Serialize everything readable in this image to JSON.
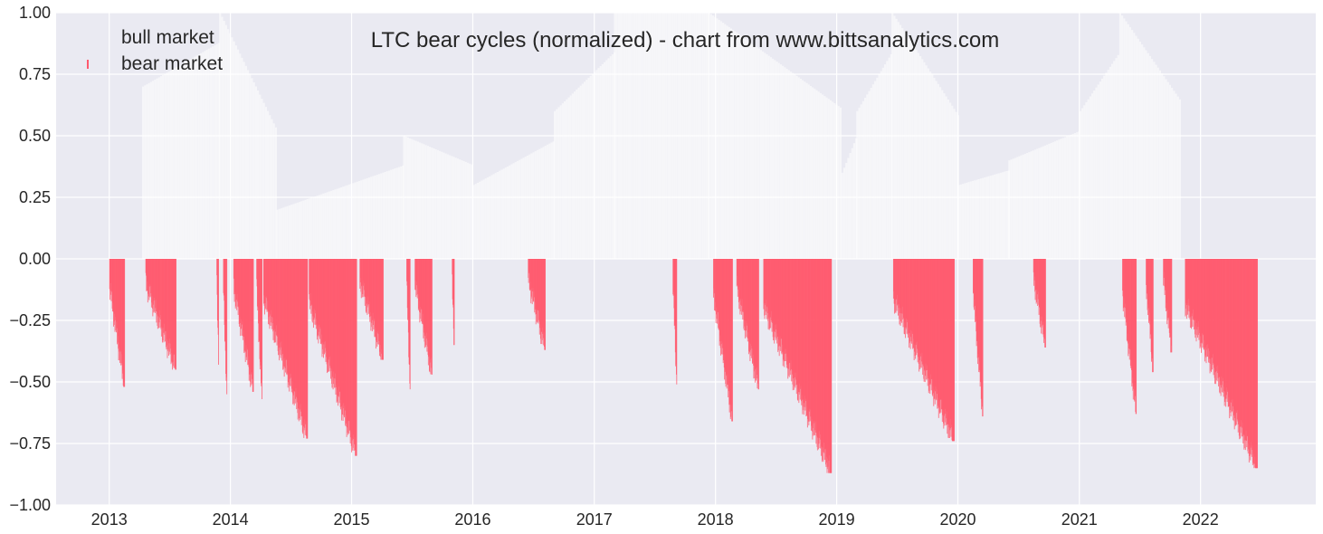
{
  "chart_data": {
    "type": "bar",
    "title": "LTC bear cycles (normalized)  - chart from www.bittsanalytics.com",
    "xlabel": "",
    "ylabel": "",
    "xlim": [
      "2012-07-25",
      "2022-12-14"
    ],
    "ylim": [
      -1.0,
      1.0
    ],
    "grid": true,
    "legend_position": "top-left",
    "x_ticks": [
      "2013",
      "2014",
      "2015",
      "2016",
      "2017",
      "2018",
      "2019",
      "2020",
      "2021",
      "2022"
    ],
    "y_ticks": [
      "1.00",
      "0.75",
      "0.50",
      "0.25",
      "0.00",
      "−0.25",
      "−0.50",
      "−0.75",
      "−1.00"
    ],
    "colors": {
      "bear": "#ff5a6e",
      "bull": "#ffffff",
      "background": "#eaeaf2",
      "grid": "#ffffff",
      "text": "#262626"
    },
    "series": [
      {
        "name": "bull market",
        "color": "#ffffff",
        "points": [
          [
            "2013-04-10",
            0.7
          ],
          [
            "2013-11-28",
            1.0
          ],
          [
            "2014-05-20",
            0.2
          ],
          [
            "2015-06-05",
            0.5
          ],
          [
            "2016-01-01",
            0.3
          ],
          [
            "2016-09-01",
            0.6
          ],
          [
            "2017-03-01",
            1.0
          ],
          [
            "2017-12-10",
            1.0
          ],
          [
            "2019-01-15",
            0.35
          ],
          [
            "2019-03-01",
            0.6
          ],
          [
            "2019-06-15",
            1.0
          ],
          [
            "2020-01-01",
            0.3
          ],
          [
            "2020-06-01",
            0.4
          ],
          [
            "2021-01-01",
            0.6
          ],
          [
            "2021-05-01",
            1.0
          ],
          [
            "2021-11-01",
            0.4
          ]
        ]
      },
      {
        "name": "bear market",
        "color": "#ff5a6e",
        "segments": [
          {
            "start": "2013-01-01",
            "end": "2013-02-15",
            "min": -0.52
          },
          {
            "start": "2013-04-20",
            "end": "2013-07-20",
            "min": -0.45
          },
          {
            "start": "2013-11-20",
            "end": "2013-11-25",
            "min": -0.43
          },
          {
            "start": "2013-12-10",
            "end": "2013-12-20",
            "min": -0.55
          },
          {
            "start": "2014-01-10",
            "end": "2014-03-10",
            "min": -0.54
          },
          {
            "start": "2014-03-20",
            "end": "2014-04-05",
            "min": -0.57
          },
          {
            "start": "2014-04-10",
            "end": "2014-08-20",
            "min": -0.73
          },
          {
            "start": "2014-08-25",
            "end": "2015-01-15",
            "min": -0.8
          },
          {
            "start": "2015-01-25",
            "end": "2015-04-05",
            "min": -0.41
          },
          {
            "start": "2015-06-15",
            "end": "2015-06-25",
            "min": -0.53
          },
          {
            "start": "2015-07-10",
            "end": "2015-08-30",
            "min": -0.47
          },
          {
            "start": "2015-10-30",
            "end": "2015-11-05",
            "min": -0.35
          },
          {
            "start": "2016-06-15",
            "end": "2016-08-05",
            "min": -0.37
          },
          {
            "start": "2017-08-25",
            "end": "2017-09-05",
            "min": -0.51
          },
          {
            "start": "2017-12-25",
            "end": "2018-02-20",
            "min": -0.66
          },
          {
            "start": "2018-03-05",
            "end": "2018-05-10",
            "min": -0.53
          },
          {
            "start": "2018-05-25",
            "end": "2018-12-15",
            "min": -0.87
          },
          {
            "start": "2019-06-20",
            "end": "2019-12-20",
            "min": -0.74
          },
          {
            "start": "2020-02-15",
            "end": "2020-03-15",
            "min": -0.64
          },
          {
            "start": "2020-08-15",
            "end": "2020-09-20",
            "min": -0.36
          },
          {
            "start": "2021-05-10",
            "end": "2021-06-20",
            "min": -0.63
          },
          {
            "start": "2021-07-20",
            "end": "2021-08-10",
            "min": -0.46
          },
          {
            "start": "2021-09-10",
            "end": "2021-10-05",
            "min": -0.38
          },
          {
            "start": "2021-11-15",
            "end": "2022-06-20",
            "min": -0.85
          }
        ]
      }
    ]
  }
}
